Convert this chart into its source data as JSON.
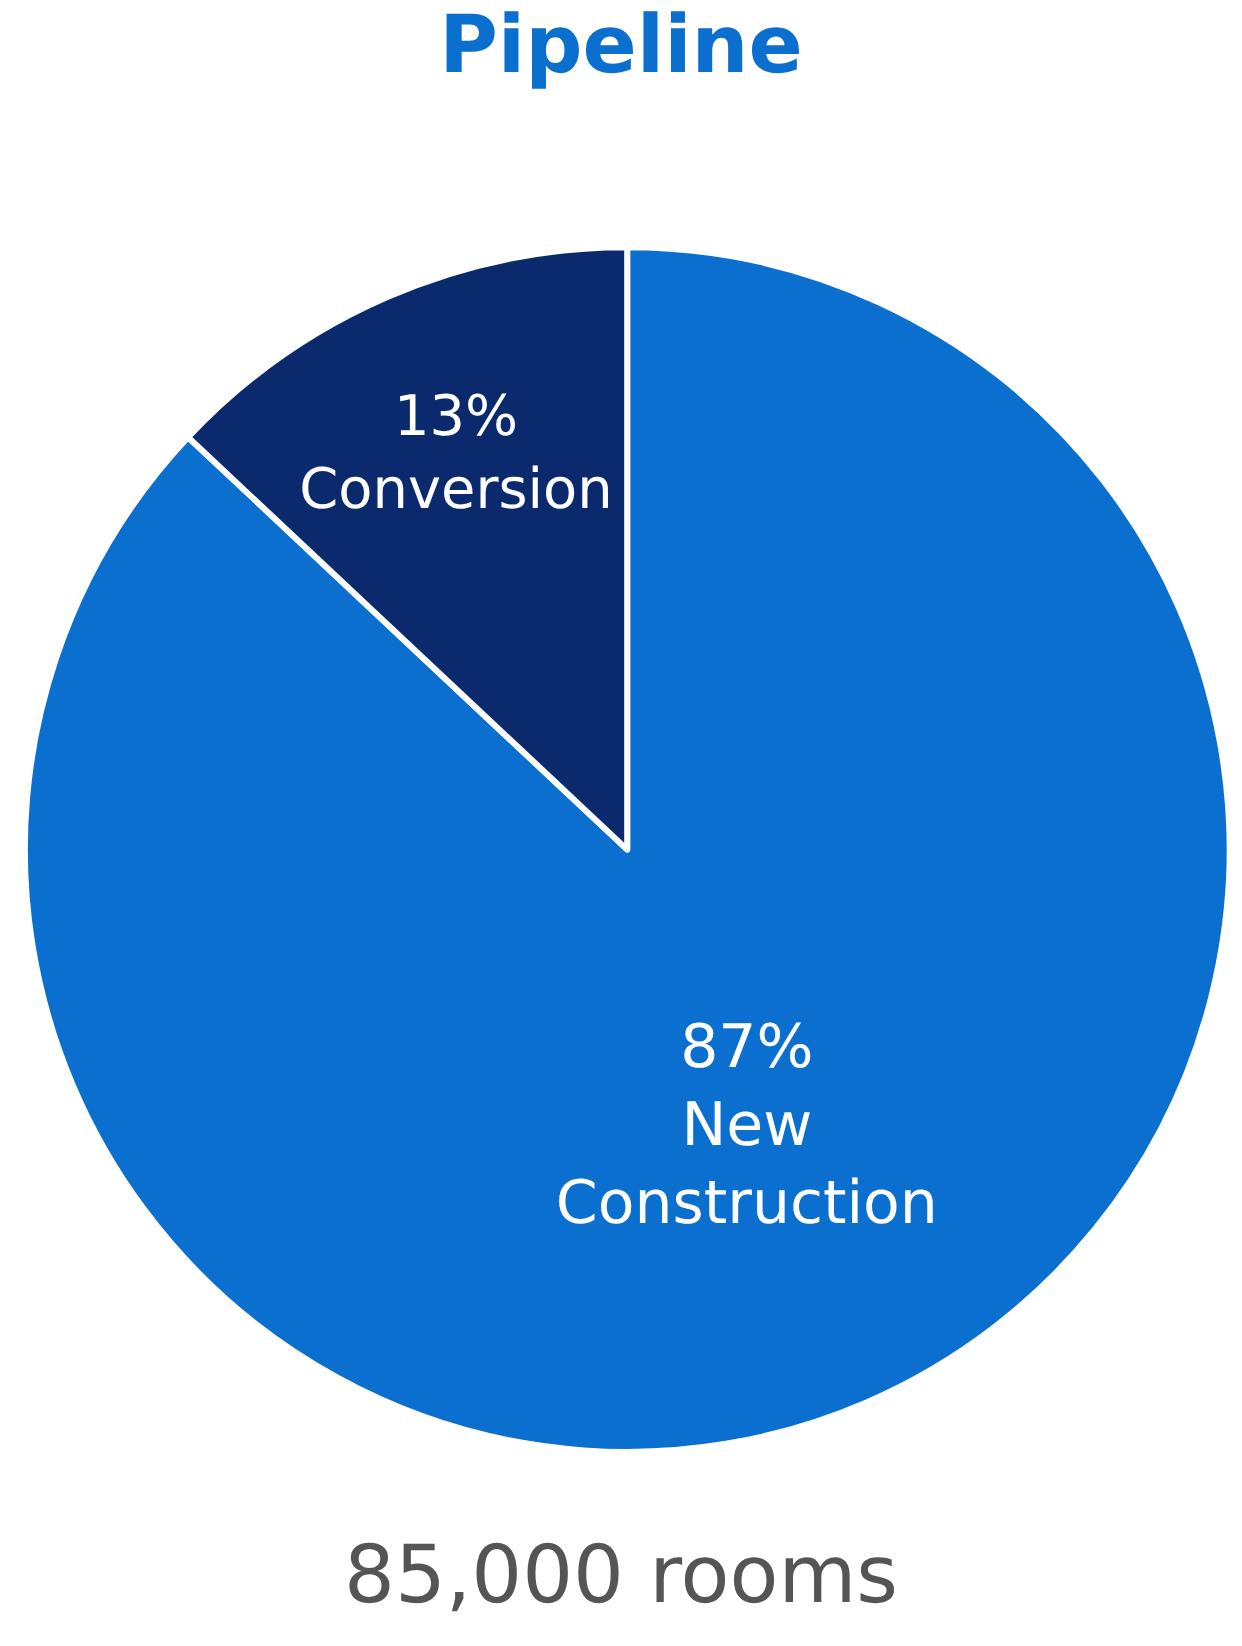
{
  "chart_data": {
    "type": "pie",
    "title": "Pipeline",
    "categories": [
      "New\nConstruction",
      "Conversion"
    ],
    "values": [
      87,
      13
    ],
    "value_labels": [
      "87%",
      "13%"
    ],
    "colors": [
      "#0a6fcf",
      "#0b2a6e"
    ],
    "legend": false,
    "annotations": [
      "85,000 rooms"
    ]
  }
}
